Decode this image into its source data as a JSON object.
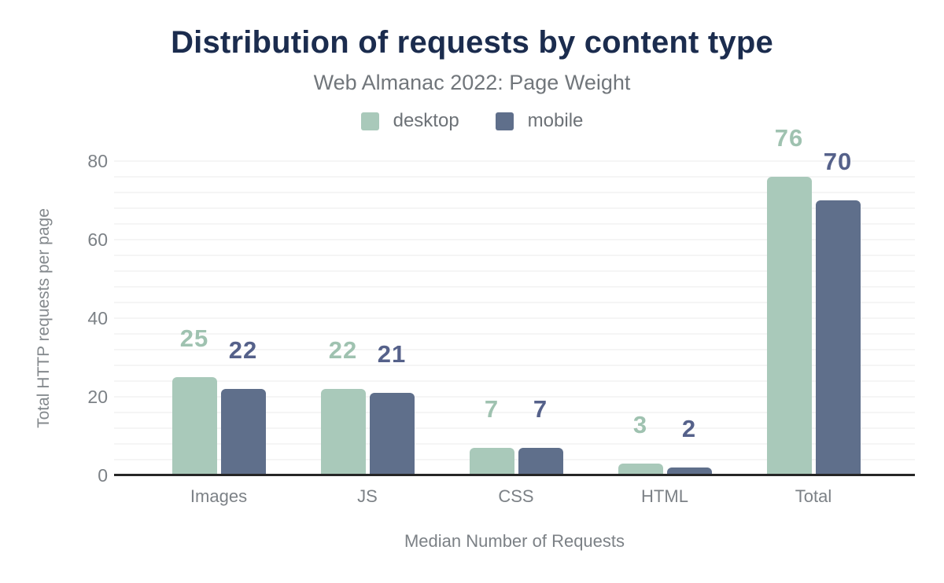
{
  "chart_data": {
    "type": "bar",
    "title": "Distribution of requests by content type",
    "subtitle": "Web Almanac 2022: Page Weight",
    "categories": [
      "Images",
      "JS",
      "CSS",
      "HTML",
      "Total"
    ],
    "series": [
      {
        "name": "desktop",
        "color": "#a9c9ba",
        "label_color": "#9fc2b0",
        "values": [
          25,
          22,
          7,
          3,
          76
        ]
      },
      {
        "name": "mobile",
        "color": "#5f6f8b",
        "label_color": "#55618a",
        "values": [
          22,
          21,
          7,
          2,
          70
        ]
      }
    ],
    "xlabel": "Median Number of Requests",
    "ylabel": "Total HTTP requests per page",
    "ylim": [
      0,
      80
    ],
    "yticks": [
      0,
      20,
      40,
      60,
      80
    ],
    "grid": {
      "show": true,
      "minor_step": 4,
      "color": "#f5f5f5"
    },
    "legend_position": "top",
    "value_labels_shown": true
  },
  "style_colors": {
    "title": "#1b2c4e",
    "subtitle": "#71767b",
    "legend_text": "#6d7277",
    "axis_text": "#7c8186",
    "axis_title_text": "#84898d",
    "axis_line": "#262626",
    "gridline": "#f5f5f5",
    "background": "#ffffff"
  }
}
